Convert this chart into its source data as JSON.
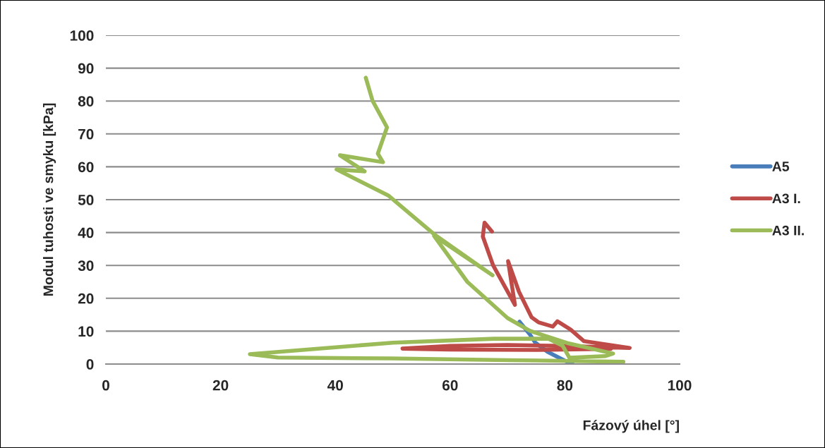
{
  "chart_data": {
    "type": "line",
    "xlabel": "Fázový úhel [°]",
    "ylabel": "Modul tuhosti ve smyku [kPa]",
    "xlim": [
      0,
      100
    ],
    "xticks": [
      0,
      20,
      40,
      60,
      80,
      100
    ],
    "ylim": [
      0,
      100
    ],
    "yticks": [
      0,
      10,
      20,
      30,
      40,
      50,
      60,
      70,
      80,
      90,
      100
    ],
    "grid": "y",
    "legend": "right",
    "line_style": "solid",
    "marker": "none",
    "series": [
      {
        "name": "A5",
        "color": "#4a7ebb",
        "x": [
          72.1,
          73.9,
          74.8,
          77.0,
          80.0,
          81.3
        ],
        "values": [
          12.9,
          9.0,
          6.6,
          3.7,
          1.0,
          0.2
        ]
      },
      {
        "name": "A3 I.",
        "color": "#be4b48",
        "x": [
          67.3,
          66.0,
          65.7,
          67.5,
          71.3,
          70.1,
          72.0,
          74.2,
          75.4,
          77.9,
          78.7,
          81.0,
          83.3,
          91.3,
          80.0,
          70.0,
          60.0,
          51.7,
          60.0,
          75.0,
          88.0
        ],
        "values": [
          40.3,
          43.0,
          38.8,
          30.0,
          18.0,
          31.3,
          22.0,
          14.2,
          12.7,
          11.4,
          13.0,
          10.5,
          7.0,
          4.9,
          5.5,
          5.8,
          5.5,
          4.7,
          4.4,
          4.3,
          4.6
        ]
      },
      {
        "name": "A3 II.",
        "color": "#9bbb59",
        "x": [
          45.3,
          46.5,
          49.0,
          47.4,
          48.3,
          40.8,
          45.1,
          40.2,
          49.2,
          57.2,
          67.4,
          57.2,
          63.0,
          70.0,
          73.9,
          80.4,
          88.4,
          87.0,
          80.8,
          79.6,
          77.1,
          67.7,
          50.0,
          25.1,
          30.0,
          49.7,
          70.0,
          90.2
        ],
        "values": [
          87.1,
          80.0,
          72.0,
          64.0,
          61.4,
          63.5,
          58.6,
          59.2,
          51.3,
          39.5,
          27.0,
          39.0,
          25.0,
          14.0,
          10.1,
          6.4,
          3.2,
          2.4,
          1.9,
          5.6,
          7.7,
          7.7,
          6.5,
          3.0,
          2.0,
          1.7,
          1.2,
          0.7
        ]
      }
    ]
  }
}
